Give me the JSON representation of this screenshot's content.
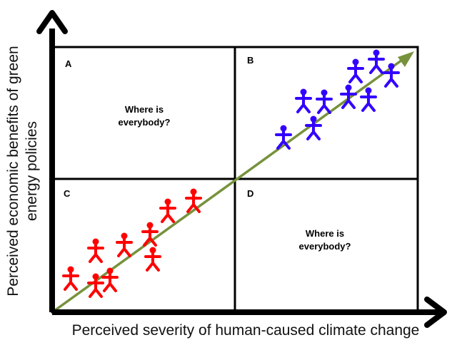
{
  "axes": {
    "y_label": "Perceived economic benefits of green energy policies",
    "x_label": "Perceived severity of human-caused climate change"
  },
  "quadrants": {
    "A": {
      "letter": "A",
      "text_line1": "Where is",
      "text_line2": "everybody?"
    },
    "B": {
      "letter": "B"
    },
    "C": {
      "letter": "C"
    },
    "D": {
      "letter": "D",
      "text_line1": "Where is",
      "text_line2": "everybody?"
    }
  },
  "colors": {
    "axis": "#000000",
    "grid": "#000000",
    "trend_line": "#76923c",
    "red_people": "#ff0000",
    "blue_people": "#3300ff"
  },
  "icons": {
    "person": "person-icon",
    "axis_arrow": "arrow-head-icon"
  }
}
